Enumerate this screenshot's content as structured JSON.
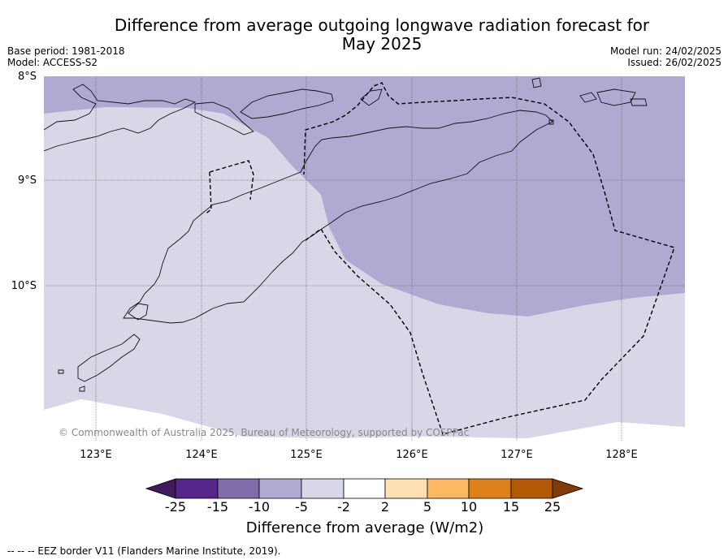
{
  "header": {
    "title_line1": "Difference from average outgoing longwave radiation forecast for",
    "title_line2": "May 2025",
    "base_period": "Base period: 1981-2018",
    "model": "Model: ACCESS-S2",
    "model_run": "Model run: 24/02/2025",
    "issued": "Issued: 26/02/2025"
  },
  "axes": {
    "lat_labels": [
      "8°S",
      "9°S",
      "10°S"
    ],
    "lon_labels": [
      "123°E",
      "124°E",
      "125°E",
      "126°E",
      "127°E",
      "128°E"
    ]
  },
  "map": {
    "copyright": "© Commonwealth of Australia 2025, Bureau of Meteorology, supported by COSPPac",
    "category_colors": {
      "-10 to -5": "#b0aad2",
      "-5 to -2": "#d7d7e8"
    },
    "features": [
      "Timor coastline",
      "Alor / Wetar islands",
      "Savu / Rote islands",
      "EEZ border (dashed)"
    ]
  },
  "colorbar": {
    "ticks": [
      "-25",
      "-15",
      "-10",
      "-5",
      "-2",
      "2",
      "5",
      "10",
      "15",
      "25"
    ],
    "colors": [
      "#3f1b5e",
      "#55278a",
      "#7e6cab",
      "#b0aad2",
      "#d7d7e8",
      "#ffffff",
      "#fee0b4",
      "#fdb863",
      "#df811b",
      "#b35806",
      "#7f3b08"
    ],
    "label": "Difference from average (W/m2)"
  },
  "footer": {
    "legend": "--  --  -- EEZ border V11 (Flanders Marine Institute, 2019)."
  }
}
